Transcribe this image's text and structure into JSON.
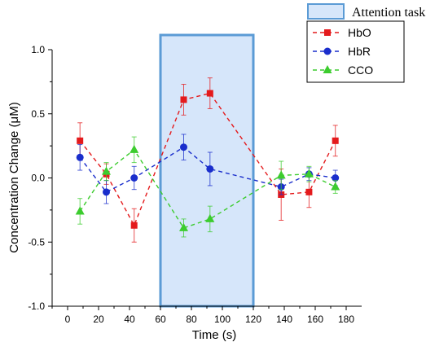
{
  "chart_data": {
    "type": "line",
    "title": "",
    "xlabel": "Time (s)",
    "ylabel": "Concentration Change (μM)",
    "xlim": [
      -10,
      190
    ],
    "ylim": [
      -1.0,
      1.0
    ],
    "x_ticks": [
      0,
      20,
      40,
      60,
      80,
      100,
      120,
      140,
      160,
      180
    ],
    "y_ticks": [
      -1.0,
      -0.5,
      0.0,
      0.5,
      1.0
    ],
    "x_tick_labels": [
      "0",
      "20",
      "40",
      "60",
      "80",
      "100",
      "120",
      "140",
      "160",
      "180"
    ],
    "y_tick_labels": [
      "-1.0",
      "-0.5",
      "0.0",
      "0.5",
      "1.0"
    ],
    "grid": false,
    "legend_placement": "top-right",
    "task_region": {
      "label": "Attention task",
      "x": [
        60,
        120
      ],
      "fill": "#d6e6fa",
      "stroke": "#5b9bd5"
    },
    "x": [
      8,
      25,
      43,
      75,
      92,
      138,
      156,
      173
    ],
    "series": [
      {
        "name": "HbO",
        "color": "#e41a1c",
        "marker": "square",
        "values": [
          0.29,
          0.03,
          -0.37,
          0.61,
          0.66,
          -0.13,
          -0.11,
          0.29
        ],
        "errors": [
          0.14,
          0.08,
          0.13,
          0.12,
          0.12,
          0.2,
          0.12,
          0.12
        ]
      },
      {
        "name": "HbR",
        "color": "#1a2ecc",
        "marker": "circle",
        "values": [
          0.16,
          -0.11,
          0.0,
          0.24,
          0.07,
          -0.07,
          0.03,
          0.0
        ],
        "errors": [
          0.1,
          0.09,
          0.09,
          0.1,
          0.13,
          0.06,
          0.05,
          0.06
        ]
      },
      {
        "name": "CCO",
        "color": "#3ccc2e",
        "marker": "triangle",
        "values": [
          -0.26,
          0.05,
          0.22,
          -0.39,
          -0.32,
          0.02,
          0.03,
          -0.07
        ],
        "errors": [
          0.1,
          0.07,
          0.1,
          0.07,
          0.1,
          0.11,
          0.06,
          0.05
        ]
      }
    ]
  }
}
